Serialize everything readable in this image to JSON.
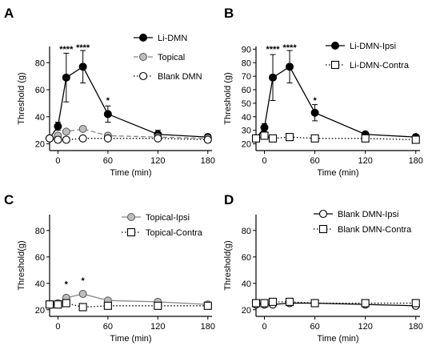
{
  "figure": {
    "panel_letters": [
      "A",
      "B",
      "C",
      "D"
    ]
  },
  "chart_data": [
    {
      "type": "line",
      "panel": "A",
      "xlabel": "Time (min)",
      "ylabel": "Threshold (g)",
      "xlim": [
        -10,
        185
      ],
      "ylim": [
        15,
        92
      ],
      "xticks": [
        0,
        60,
        120,
        180
      ],
      "yticks": [
        20,
        40,
        60,
        80
      ],
      "legend_position": "top-right",
      "series": [
        {
          "name": "Li-DMN",
          "color": "#000000",
          "marker": "filled-circle",
          "line": "solid",
          "x": [
            -10,
            0,
            10,
            30,
            60,
            120,
            180
          ],
          "y": [
            24,
            33,
            69,
            77,
            42,
            27,
            25
          ],
          "error": [
            0,
            3,
            18,
            12,
            6,
            3,
            2
          ]
        },
        {
          "name": "Topical",
          "color": "#888888",
          "marker": "gray-circle",
          "line": "dashed",
          "x": [
            -10,
            0,
            10,
            30,
            60,
            120,
            180
          ],
          "y": [
            24,
            26,
            29,
            31,
            26,
            25,
            24
          ],
          "error": [
            0,
            0,
            0,
            0,
            0,
            0,
            0
          ]
        },
        {
          "name": "Blank DMN",
          "color": "#000000",
          "marker": "open-circle",
          "line": "dotted",
          "x": [
            -10,
            0,
            10,
            30,
            60,
            120,
            180
          ],
          "y": [
            24,
            23,
            23,
            24,
            24,
            24,
            23
          ],
          "error": [
            0,
            0,
            0,
            0,
            0,
            0,
            0
          ]
        }
      ],
      "annotations": [
        {
          "text": "****",
          "x": 10,
          "y": 88
        },
        {
          "text": "****",
          "x": 30,
          "y": 89
        },
        {
          "text": "*",
          "x": 60,
          "y": 50
        }
      ]
    },
    {
      "type": "line",
      "panel": "B",
      "xlabel": "Time (min)",
      "ylabel": "Threshold (g)",
      "xlim": [
        -10,
        185
      ],
      "ylim": [
        15,
        92
      ],
      "xticks": [
        0,
        60,
        120,
        180
      ],
      "yticks": [
        20,
        30,
        40,
        50,
        60,
        70,
        80,
        90
      ],
      "legend_position": "top-right",
      "series": [
        {
          "name": "Li-DMN-Ipsi",
          "color": "#000000",
          "marker": "filled-circle",
          "line": "solid",
          "x": [
            -10,
            0,
            10,
            30,
            60,
            120,
            180
          ],
          "y": [
            24,
            32,
            69,
            77,
            43,
            27,
            25
          ],
          "error": [
            0,
            3,
            17,
            12,
            6,
            2,
            2
          ]
        },
        {
          "name": "Li-DMN-Contra",
          "color": "#000000",
          "marker": "open-square",
          "line": "dotted",
          "x": [
            -10,
            0,
            10,
            30,
            60,
            120,
            180
          ],
          "y": [
            24,
            26,
            24,
            25,
            24,
            24,
            23
          ],
          "error": [
            0,
            0,
            0,
            0,
            0,
            0,
            0
          ]
        }
      ],
      "annotations": [
        {
          "text": "****",
          "x": 10,
          "y": 88
        },
        {
          "text": "****",
          "x": 30,
          "y": 89
        },
        {
          "text": "*",
          "x": 60,
          "y": 50
        }
      ]
    },
    {
      "type": "line",
      "panel": "C",
      "xlabel": "Time (min)",
      "ylabel": "Threshold(g)",
      "xlim": [
        -10,
        185
      ],
      "ylim": [
        15,
        92
      ],
      "xticks": [
        0,
        60,
        120,
        180
      ],
      "yticks": [
        20,
        40,
        60,
        80
      ],
      "legend_position": "top-right",
      "series": [
        {
          "name": "Topical-Ipsi",
          "color": "#888888",
          "marker": "gray-circle",
          "line": "solid",
          "x": [
            -10,
            0,
            10,
            30,
            60,
            120,
            180
          ],
          "y": [
            24,
            25,
            29,
            32,
            27,
            26,
            24
          ],
          "error": [
            0,
            0,
            0,
            0,
            0,
            2,
            1
          ]
        },
        {
          "name": "Topical-Contra",
          "color": "#000000",
          "marker": "open-square",
          "line": "dotted",
          "x": [
            -10,
            0,
            10,
            30,
            60,
            120,
            180
          ],
          "y": [
            24,
            24,
            25,
            22,
            23,
            23,
            23
          ],
          "error": [
            0,
            0,
            0,
            0,
            0,
            0,
            0
          ]
        }
      ],
      "annotations": [
        {
          "text": "*",
          "x": 10,
          "y": 37
        },
        {
          "text": "*",
          "x": 30,
          "y": 40
        }
      ]
    },
    {
      "type": "line",
      "panel": "D",
      "xlabel": "Time (min)",
      "ylabel": "Threshold(g)",
      "xlim": [
        -10,
        185
      ],
      "ylim": [
        15,
        92
      ],
      "xticks": [
        0,
        60,
        120,
        180
      ],
      "yticks": [
        20,
        40,
        60,
        80
      ],
      "legend_position": "top-right",
      "series": [
        {
          "name": "Blank DMN-Ipsi",
          "color": "#000000",
          "marker": "open-circle",
          "line": "solid",
          "x": [
            -10,
            0,
            10,
            30,
            60,
            120,
            180
          ],
          "y": [
            24,
            24,
            24,
            25,
            25,
            24,
            23
          ],
          "error": [
            0,
            0,
            0,
            0,
            0,
            0,
            0
          ]
        },
        {
          "name": "Blank DMN-Contra",
          "color": "#000000",
          "marker": "open-square",
          "line": "dotted",
          "x": [
            -10,
            0,
            10,
            30,
            60,
            120,
            180
          ],
          "y": [
            25,
            25,
            26,
            26,
            25,
            25,
            25
          ],
          "error": [
            0,
            0,
            0,
            0,
            0,
            0,
            0
          ]
        }
      ],
      "annotations": []
    }
  ]
}
